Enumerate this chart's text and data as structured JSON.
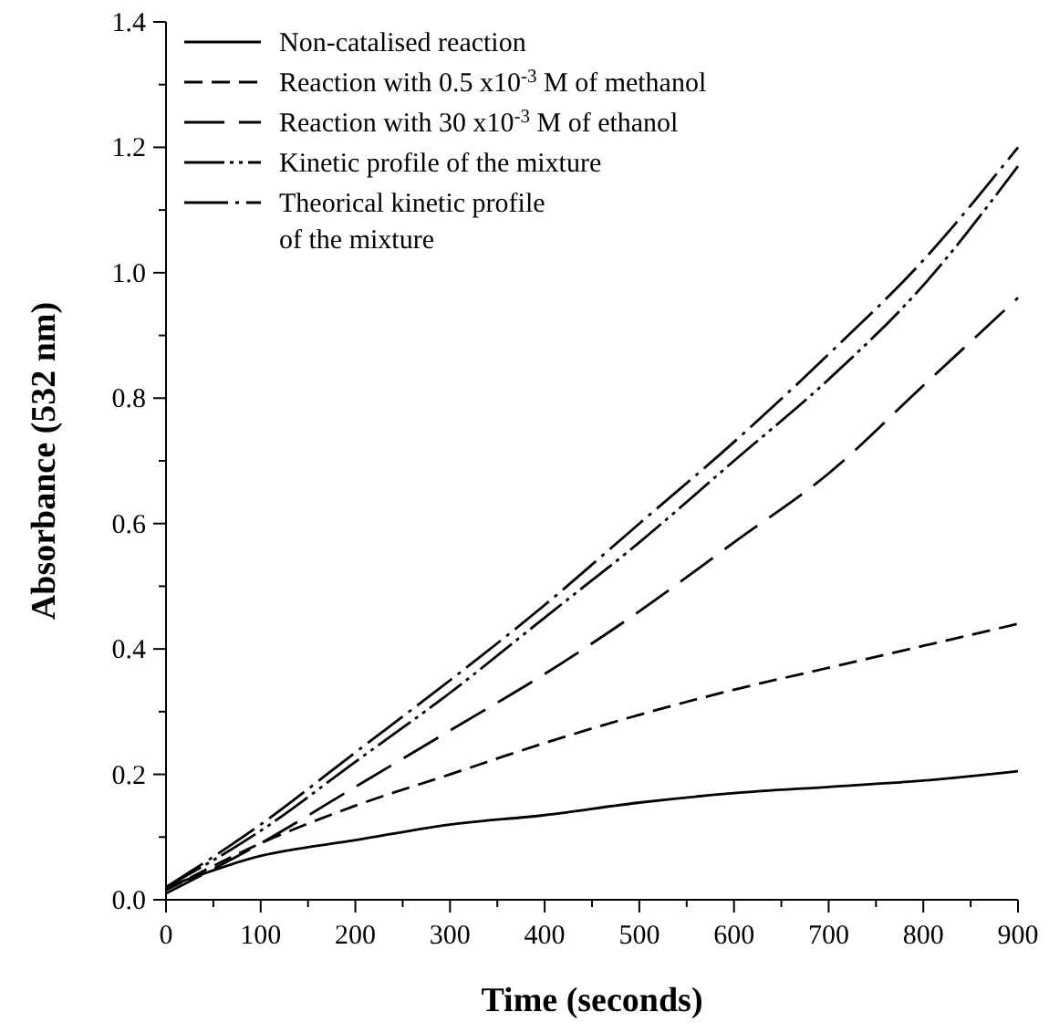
{
  "chart_data": {
    "type": "line",
    "xlabel": "Time (seconds)",
    "ylabel": "Absorbance (532 nm)",
    "x": [
      0,
      100,
      200,
      300,
      400,
      500,
      600,
      700,
      800,
      900
    ],
    "xlim": [
      0,
      900
    ],
    "xticks": [
      0,
      {
        "value": 50,
        "label": null
      },
      100,
      {
        "value": 150,
        "label": null
      },
      200,
      {
        "value": 250,
        "label": null
      },
      300,
      {
        "value": 350,
        "label": null
      },
      400,
      {
        "value": 450,
        "label": null
      },
      500,
      {
        "value": 550,
        "label": null
      },
      600,
      {
        "value": 650,
        "label": null
      },
      700,
      {
        "value": 750,
        "label": null
      },
      800,
      {
        "value": 850,
        "label": null
      },
      900
    ],
    "ylim": [
      0,
      1.4
    ],
    "yticks": [
      {
        "value": 0,
        "label": "0.0"
      },
      {
        "value": 0.1,
        "label": null
      },
      0.2,
      {
        "value": 0.3,
        "label": null
      },
      0.4,
      {
        "value": 0.5,
        "label": null
      },
      0.6,
      {
        "value": 0.7,
        "label": null
      },
      0.8,
      {
        "value": 0.9,
        "label": null
      },
      {
        "value": 1.0,
        "label": "1.0"
      },
      {
        "value": 1.1,
        "label": null
      },
      1.2,
      {
        "value": 1.3,
        "label": null
      },
      1.4
    ],
    "grid": false,
    "legend": "top left",
    "marker": "none",
    "series": [
      {
        "name": "Non-catalised reaction",
        "color": "#000000",
        "line_style": "solid",
        "values": [
          0.02,
          0.07,
          0.095,
          0.12,
          0.135,
          0.155,
          0.17,
          0.18,
          0.19,
          0.205
        ]
      },
      {
        "name": "Reaction with 0.5 x10$^{-3}$ M of methanol",
        "color": "#000000",
        "line_style": "dashed",
        "values": [
          0.015,
          0.09,
          0.15,
          0.2,
          0.25,
          0.295,
          0.335,
          0.37,
          0.405,
          0.44
        ]
      },
      {
        "name": "Reaction with 30 x10$^{-3}$ M of ethanol",
        "color": "#000000",
        "line_style": "longdashed",
        "values": [
          0.01,
          0.09,
          0.18,
          0.27,
          0.36,
          0.46,
          0.57,
          0.68,
          0.82,
          0.96
        ]
      },
      {
        "name": "Kinetic profile of the mixture",
        "color": "#000000",
        "line_style": "dashdotdot",
        "values": [
          0.02,
          0.11,
          0.22,
          0.33,
          0.45,
          0.57,
          0.7,
          0.83,
          0.98,
          1.17
        ]
      },
      {
        "name": "Theorical kinetic profile\nof the mixture",
        "color": "#000000",
        "line_style": "dashdot",
        "values": [
          0.02,
          0.12,
          0.235,
          0.35,
          0.47,
          0.6,
          0.73,
          0.87,
          1.02,
          1.2
        ]
      }
    ]
  }
}
